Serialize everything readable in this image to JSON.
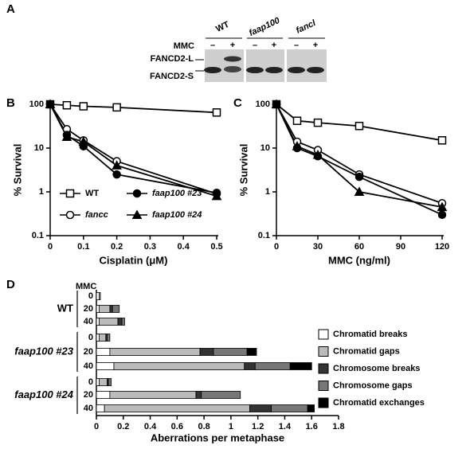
{
  "blot": {
    "panel": "A",
    "treatment_label": "MMC",
    "bands": [
      "FANCD2-L",
      "FANCD2-S"
    ],
    "lanes": [
      {
        "label": "WT",
        "treatments": [
          "–",
          "+"
        ]
      },
      {
        "label": "faap100",
        "treatments": [
          "–",
          "+"
        ]
      },
      {
        "label": "fancl",
        "treatments": [
          "–",
          "+"
        ]
      }
    ]
  },
  "chart_data": [
    {
      "type": "line",
      "panel": "B",
      "x_label": "Cisplatin (μM)",
      "y_label": "% Survival",
      "log_y": true,
      "x": [
        0,
        0.05,
        0.1,
        0.2,
        0.5
      ],
      "xlim": [
        0,
        0.5
      ],
      "xticks": [
        0,
        0.1,
        0.2,
        0.3,
        0.4,
        0.5
      ],
      "ylim": [
        0.1,
        100
      ],
      "yticks": [
        0.1,
        1,
        10,
        100
      ],
      "series": [
        {
          "name": "WT",
          "color": "#000000",
          "marker": "square-open",
          "values": [
            100,
            95,
            90,
            85,
            65
          ]
        },
        {
          "name": "fancc",
          "color": "#000000",
          "marker": "circle-open",
          "values": [
            100,
            27,
            15,
            5,
            0.9
          ]
        },
        {
          "name": "faap100 #23",
          "color": "#000000",
          "marker": "circle-filled",
          "values": [
            100,
            20,
            11,
            2.5,
            0.95
          ]
        },
        {
          "name": "faap100 #24",
          "color": "#000000",
          "marker": "triangle-filled",
          "values": [
            100,
            18,
            14,
            4,
            0.8
          ]
        }
      ]
    },
    {
      "type": "line",
      "panel": "C",
      "x_label": "MMC (ng/ml)",
      "y_label": "% Survival",
      "log_y": true,
      "x": [
        0,
        15,
        30,
        60,
        120
      ],
      "xlim": [
        0,
        120
      ],
      "xticks": [
        0,
        30,
        60,
        90,
        120
      ],
      "ylim": [
        0.1,
        100
      ],
      "yticks": [
        0.1,
        1,
        10,
        100
      ],
      "series": [
        {
          "color": "#000000",
          "marker": "square-open",
          "values": [
            100,
            42,
            38,
            32,
            15
          ]
        },
        {
          "color": "#000000",
          "marker": "circle-open",
          "values": [
            100,
            14,
            9,
            2.5,
            0.55
          ]
        },
        {
          "color": "#000000",
          "marker": "circle-filled",
          "values": [
            100,
            10,
            6.5,
            2.2,
            0.3
          ]
        },
        {
          "color": "#000000",
          "marker": "triangle-filled",
          "values": [
            100,
            11,
            7,
            1,
            0.45
          ]
        }
      ]
    },
    {
      "type": "bar",
      "orientation": "horizontal",
      "stacked": true,
      "panel": "D",
      "x_label": "Aberrations per metaphase",
      "category_label": "MMC",
      "groups": [
        "WT",
        "faap100 #23",
        "faap100 #24"
      ],
      "categories": [
        "0",
        "20",
        "40",
        "0",
        "20",
        "40",
        "0",
        "20",
        "40"
      ],
      "xlim": [
        0,
        1.8
      ],
      "xticks": [
        0,
        0.2,
        0.4,
        0.6,
        0.8,
        1,
        1.2,
        1.4,
        1.6,
        1.8
      ],
      "series": [
        {
          "name": "Chromatid breaks",
          "color": "#ffffff",
          "values": [
            0.02,
            0.02,
            0.02,
            0.02,
            0.1,
            0.13,
            0.02,
            0.1,
            0.06
          ]
        },
        {
          "name": "Chromatid gaps",
          "color": "#bbbbbb",
          "values": [
            0.01,
            0.08,
            0.14,
            0.05,
            0.67,
            0.97,
            0.06,
            0.64,
            1.08
          ]
        },
        {
          "name": "Chromosome breaks",
          "color": "#333333",
          "values": [
            0,
            0.02,
            0.03,
            0.01,
            0.1,
            0.08,
            0.01,
            0.04,
            0.16
          ]
        },
        {
          "name": "Chromosome gaps",
          "color": "#777777",
          "values": [
            0,
            0.05,
            0.02,
            0.02,
            0.25,
            0.26,
            0.02,
            0.29,
            0.27
          ]
        },
        {
          "name": "Chromatid exchanges",
          "color": "#000000",
          "values": [
            0,
            0,
            0,
            0,
            0.07,
            0.16,
            0,
            0,
            0.05
          ]
        }
      ]
    }
  ]
}
